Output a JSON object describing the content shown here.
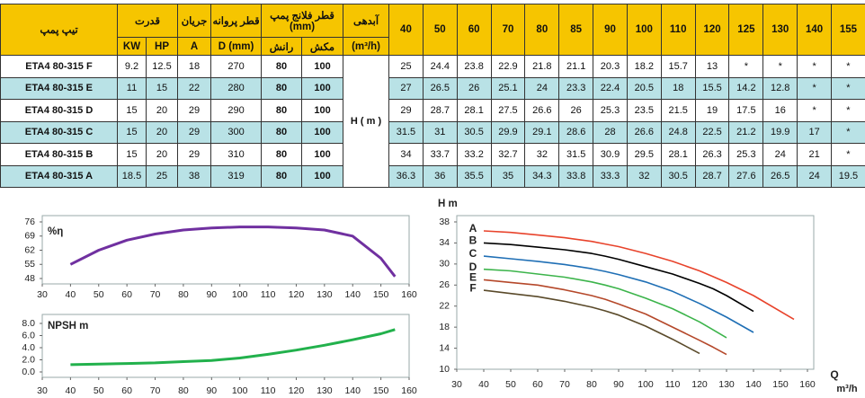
{
  "table": {
    "header": {
      "model": "تیپ پمپ",
      "power": "قدرت",
      "power_kw": "KW",
      "power_hp": "HP",
      "current": "جریان",
      "current_unit": "A",
      "impeller": "قطر پروانه",
      "impeller_unit": "D (mm)",
      "flange": "قطر فلانج پمپ (mm)",
      "discharge": "رانش",
      "suction": "مکش",
      "flow": "آبدهی",
      "flow_unit": "(m³/h)",
      "flows": [
        40,
        50,
        60,
        70,
        80,
        85,
        90,
        100,
        110,
        120,
        125,
        130,
        140,
        155
      ]
    },
    "head_label": "H ( m )",
    "rows": [
      {
        "model": "ETA4 80-315 F",
        "specs": [
          9.2,
          12.5,
          18,
          270,
          80,
          100
        ],
        "heads": [
          25,
          24.4,
          23.8,
          22.9,
          21.8,
          21.1,
          20.3,
          18.2,
          15.7,
          13,
          "*",
          "*",
          "*",
          "*"
        ]
      },
      {
        "model": "ETA4 80-315 E",
        "specs": [
          11,
          15,
          22,
          280,
          80,
          100
        ],
        "heads": [
          27,
          26.5,
          26,
          25.1,
          24,
          23.3,
          22.4,
          20.5,
          18,
          15.5,
          14.2,
          12.8,
          "*",
          "*"
        ]
      },
      {
        "model": "ETA4 80-315 D",
        "specs": [
          15,
          20,
          29,
          290,
          80,
          100
        ],
        "heads": [
          29,
          28.7,
          28.1,
          27.5,
          26.6,
          26,
          25.3,
          23.5,
          21.5,
          19,
          17.5,
          16,
          "*",
          "*"
        ]
      },
      {
        "model": "ETA4 80-315 C",
        "specs": [
          15,
          20,
          29,
          300,
          80,
          100
        ],
        "heads": [
          31.5,
          31,
          30.5,
          29.9,
          29.1,
          28.6,
          28,
          26.6,
          24.8,
          22.5,
          21.2,
          19.9,
          17,
          "*"
        ]
      },
      {
        "model": "ETA4 80-315 B",
        "specs": [
          15,
          20,
          29,
          310,
          80,
          100
        ],
        "heads": [
          34,
          33.7,
          33.2,
          32.7,
          32,
          31.5,
          30.9,
          29.5,
          28.1,
          26.3,
          25.3,
          24,
          21,
          "*"
        ]
      },
      {
        "model": "ETA4 80-315 A",
        "specs": [
          18.5,
          25,
          38,
          319,
          80,
          100
        ],
        "heads": [
          36.3,
          36,
          35.5,
          35,
          34.3,
          33.8,
          33.3,
          32,
          30.5,
          28.7,
          27.6,
          26.5,
          24,
          19.5
        ]
      }
    ]
  },
  "chart_data": [
    {
      "type": "line",
      "ylabel": "%η",
      "x": [
        40,
        50,
        60,
        70,
        80,
        90,
        100,
        110,
        120,
        130,
        140,
        150,
        155
      ],
      "series": [
        {
          "color": "#7030a0",
          "values": [
            55,
            62,
            67,
            70,
            72,
            73,
            73.5,
            73.5,
            73,
            72,
            69,
            58,
            49
          ]
        }
      ],
      "xlim": [
        30,
        160
      ],
      "xticks": [
        30,
        40,
        50,
        60,
        70,
        80,
        90,
        100,
        110,
        120,
        130,
        140,
        150,
        160
      ],
      "ylim": [
        48,
        76
      ],
      "yticks": [
        48,
        55,
        62,
        69,
        76
      ]
    },
    {
      "type": "line",
      "ylabel": "NPSH m",
      "x": [
        40,
        50,
        60,
        70,
        80,
        90,
        100,
        110,
        120,
        130,
        140,
        150,
        155
      ],
      "series": [
        {
          "color": "#22b14c",
          "values": [
            1.2,
            1.3,
            1.4,
            1.5,
            1.7,
            1.9,
            2.3,
            2.9,
            3.6,
            4.4,
            5.3,
            6.3,
            7.0
          ]
        }
      ],
      "xlim": [
        30,
        160
      ],
      "xticks": [
        30,
        40,
        50,
        60,
        70,
        80,
        90,
        100,
        110,
        120,
        130,
        140,
        150,
        160
      ],
      "ylim": [
        0,
        8
      ],
      "yticks": [
        {
          "value": 0,
          "label": "0.0"
        },
        {
          "value": 2,
          "label": "2.0"
        },
        {
          "value": 4,
          "label": "4.0"
        },
        {
          "value": 6,
          "label": "6.0"
        },
        {
          "value": 8,
          "label": "8.0"
        }
      ]
    },
    {
      "type": "line",
      "ylabel": "H m",
      "xlabel": "Q",
      "xlabel_unit": "m³/h",
      "x": [
        40,
        50,
        60,
        70,
        80,
        85,
        90,
        100,
        110,
        120,
        125,
        130,
        140,
        155
      ],
      "series": [
        {
          "name": "A",
          "color": "#e8432b",
          "values": [
            36.3,
            36,
            35.5,
            35,
            34.3,
            33.8,
            33.3,
            32,
            30.5,
            28.7,
            27.6,
            26.5,
            24,
            19.5
          ]
        },
        {
          "name": "B",
          "color": "#000000",
          "values": [
            34,
            33.7,
            33.2,
            32.7,
            32,
            31.5,
            30.9,
            29.5,
            28.1,
            26.3,
            25.3,
            24,
            21,
            null
          ]
        },
        {
          "name": "C",
          "color": "#1f6fb5",
          "values": [
            31.5,
            31,
            30.5,
            29.9,
            29.1,
            28.6,
            28,
            26.6,
            24.8,
            22.5,
            21.2,
            19.9,
            17,
            null
          ]
        },
        {
          "name": "D",
          "color": "#3cb44b",
          "values": [
            29,
            28.7,
            28.1,
            27.5,
            26.6,
            26,
            25.3,
            23.5,
            21.5,
            19,
            17.5,
            16,
            null,
            null
          ]
        },
        {
          "name": "E",
          "color": "#b5482a",
          "values": [
            27,
            26.5,
            26,
            25.1,
            24,
            23.3,
            22.4,
            20.5,
            18,
            15.5,
            14.2,
            12.8,
            null,
            null
          ]
        },
        {
          "name": "F",
          "color": "#5a4a2a",
          "values": [
            25,
            24.4,
            23.8,
            22.9,
            21.8,
            21.1,
            20.3,
            18.2,
            15.7,
            13,
            null,
            null,
            null,
            null
          ]
        }
      ],
      "xlim": [
        30,
        160
      ],
      "xticks": [
        30,
        40,
        50,
        60,
        70,
        80,
        90,
        100,
        110,
        120,
        130,
        140,
        150,
        160
      ],
      "ylim": [
        10,
        38
      ],
      "yticks": [
        10,
        14,
        18,
        22,
        26,
        30,
        34,
        38
      ]
    }
  ]
}
